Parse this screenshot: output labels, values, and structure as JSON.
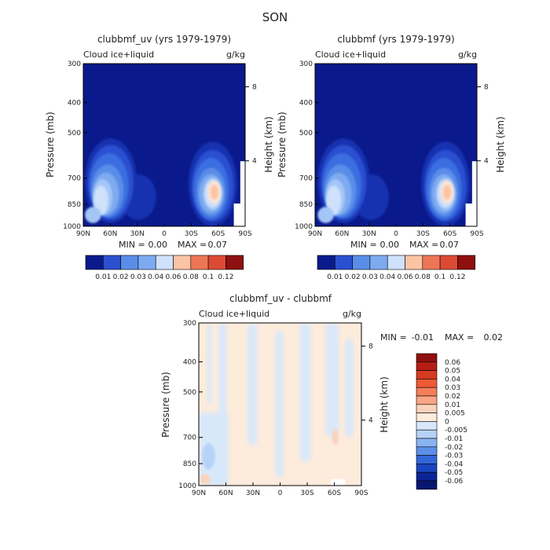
{
  "page": {
    "title": "SON"
  },
  "chart_data": [
    {
      "type": "heatmap",
      "title": "clubbmf_uv (yrs 1979-1979)",
      "left_label": "Cloud ice+liquid",
      "units": "g/kg",
      "ylabel": "Pressure (mb)",
      "y2label": "Height (km)",
      "xticks": [
        "90N",
        "60N",
        "30N",
        "0",
        "30S",
        "60S",
        "90S"
      ],
      "yticks": [
        "300",
        "400",
        "500",
        "700",
        "850",
        "1000"
      ],
      "y2ticks": [
        "8",
        "4"
      ],
      "ylim": [
        300,
        1000
      ],
      "stats": {
        "min_label": "MIN =",
        "min": "0.00",
        "max_label": "MAX =",
        "max": "0.07"
      },
      "colorbar": {
        "levels": [
          "0.01",
          "0.02",
          "0.03",
          "0.04",
          "0.06",
          "0.08",
          "0.1",
          "0.12"
        ]
      }
    },
    {
      "type": "heatmap",
      "title": "clubbmf (yrs 1979-1979)",
      "left_label": "Cloud ice+liquid",
      "units": "g/kg",
      "ylabel": "Pressure (mb)",
      "y2label": "Height (km)",
      "xticks": [
        "90N",
        "60N",
        "30N",
        "0",
        "30S",
        "60S",
        "90S"
      ],
      "yticks": [
        "300",
        "400",
        "500",
        "700",
        "850",
        "1000"
      ],
      "y2ticks": [
        "8",
        "4"
      ],
      "ylim": [
        300,
        1000
      ],
      "stats": {
        "min_label": "MIN =",
        "min": "0.00",
        "max_label": "MAX =",
        "max": "0.07"
      },
      "colorbar": {
        "levels": [
          "0.01",
          "0.02",
          "0.03",
          "0.04",
          "0.06",
          "0.08",
          "0.1",
          "0.12"
        ]
      }
    },
    {
      "type": "heatmap",
      "title": "clubbmf_uv - clubbmf",
      "left_label": "Cloud ice+liquid",
      "units": "g/kg",
      "ylabel": "Pressure (mb)",
      "y2label": "Height (km)",
      "xticks": [
        "90N",
        "60N",
        "30N",
        "0",
        "30S",
        "60S",
        "90S"
      ],
      "yticks": [
        "300",
        "400",
        "500",
        "700",
        "850",
        "1000"
      ],
      "y2ticks": [
        "8",
        "4"
      ],
      "ylim": [
        300,
        1000
      ],
      "stats": {
        "min_label": "MIN =",
        "min": "-0.01",
        "max_label": "MAX =",
        "max": "0.02"
      },
      "colorbar": {
        "levels": [
          "0.06",
          "0.05",
          "0.04",
          "0.03",
          "0.02",
          "0.01",
          "0.005",
          "0",
          "-0.005",
          "-0.01",
          "-0.02",
          "-0.03",
          "-0.04",
          "-0.05",
          "-0.06"
        ]
      }
    }
  ],
  "colors": {
    "seq": [
      "#0a1a8c",
      "#1830b0",
      "#2a50d0",
      "#3a6ee0",
      "#5a8de8",
      "#7eaaf0",
      "#a4c6f6",
      "#cfe1fb",
      "#fde4d2",
      "#fbc4a4",
      "#f5a07c",
      "#ec7656",
      "#dc4a34",
      "#bf2a1c",
      "#8f1010"
    ],
    "diff": [
      "#8f1010",
      "#b51e14",
      "#d63a20",
      "#ee5a36",
      "#f47e5a",
      "#f7a584",
      "#fbd3bc",
      "#fdebdc",
      "#d8e8fb",
      "#b6d2f7",
      "#8ab4f2",
      "#5c8fe8",
      "#3466da",
      "#1a44c0",
      "#0c2496",
      "#071670"
    ]
  }
}
